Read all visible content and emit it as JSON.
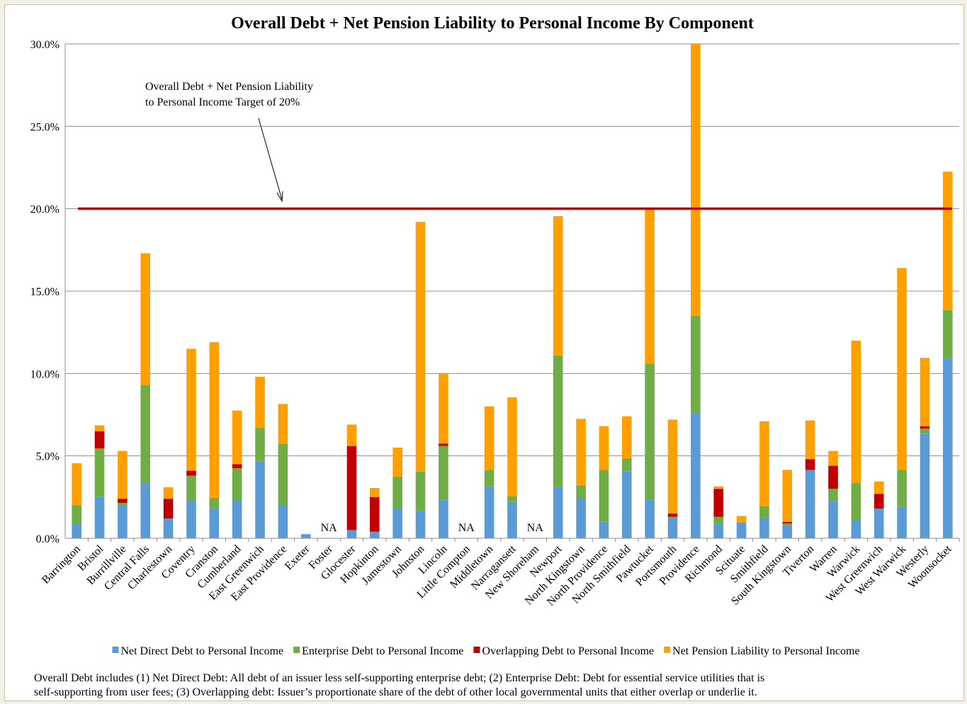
{
  "chart_data": {
    "type": "stacked_bar",
    "title": "Overall Debt + Net Pension Liability to Personal Income By Component",
    "categories": [
      "Barrington",
      "Bristol",
      "Burrillville",
      "Central Falls",
      "Charlestown",
      "Coventry",
      "Cranston",
      "Cumberland",
      "East Greenwich",
      "East Providence",
      "Exeter",
      "Foster",
      "Glocester",
      "Hopkinton",
      "Jamestown",
      "Johnston",
      "Lincoln",
      "Little Compton",
      "Middletown",
      "Narragansett",
      "New Shoreham",
      "Newport",
      "North Kingstown",
      "North Providence",
      "North Smithfield",
      "Pawtucket",
      "Portsmouth",
      "Providence",
      "Richmond",
      "Scituate",
      "Smithfield",
      "South Kingstown",
      "Tiverton",
      "Warren",
      "Warwick",
      "West Greenwich",
      "West Warwick",
      "Westerly",
      "Woonsocket"
    ],
    "series": [
      {
        "name": "Net Direct Debt to Personal Income",
        "color": "#5b9bd5",
        "values": [
          0.9,
          2.5,
          2.0,
          3.35,
          1.2,
          2.3,
          1.8,
          2.3,
          4.65,
          2.0,
          0.25,
          null,
          0.5,
          0.4,
          1.85,
          1.65,
          2.35,
          null,
          3.15,
          2.2,
          null,
          3.1,
          2.45,
          1.0,
          4.05,
          2.35,
          1.2,
          7.6,
          0.85,
          0.95,
          1.25,
          0.8,
          4.15,
          2.25,
          1.1,
          1.8,
          1.9,
          6.35,
          10.9
        ]
      },
      {
        "name": "Enterprise Debt to Personal Income",
        "color": "#70ad47",
        "values": [
          1.1,
          2.95,
          0.15,
          5.95,
          0,
          1.5,
          0.65,
          1.95,
          2.05,
          3.75,
          0,
          null,
          0,
          0,
          1.9,
          2.4,
          3.25,
          null,
          1.0,
          0.35,
          null,
          8.0,
          0.75,
          3.15,
          0.8,
          8.25,
          0.1,
          5.9,
          0.45,
          0,
          0.7,
          0.1,
          0,
          0.75,
          2.25,
          0,
          2.25,
          0.3,
          2.95
        ]
      },
      {
        "name": "Overlapping Debt to Personal Income",
        "color": "#c00000",
        "values": [
          0,
          1.05,
          0.25,
          0,
          1.2,
          0.3,
          0,
          0.25,
          0,
          0,
          0,
          null,
          5.1,
          2.1,
          0,
          0,
          0.15,
          null,
          0,
          0,
          null,
          0,
          0,
          0,
          0,
          0,
          0.2,
          0,
          1.7,
          0,
          0,
          0.1,
          0.65,
          1.4,
          0,
          0.9,
          0,
          0.15,
          0
        ]
      },
      {
        "name": "Net Pension Liability to Personal Income",
        "color": "#ffa000",
        "values": [
          2.55,
          0.35,
          2.9,
          8.0,
          0.7,
          7.4,
          9.45,
          3.25,
          3.1,
          2.4,
          0,
          null,
          1.3,
          0.55,
          1.75,
          15.15,
          4.25,
          null,
          3.85,
          6.0,
          null,
          8.45,
          4.05,
          2.65,
          2.55,
          9.4,
          5.7,
          16.5,
          0.15,
          0.4,
          5.15,
          3.15,
          2.35,
          0.9,
          8.65,
          0.75,
          12.25,
          4.15,
          8.4
        ]
      }
    ],
    "missing_label": "NA",
    "ylim": [
      0,
      30
    ],
    "yticks": [
      {
        "value": 0,
        "label": "0.0%"
      },
      {
        "value": 5,
        "label": "5.0%"
      },
      {
        "value": 10,
        "label": "10.0%"
      },
      {
        "value": 15,
        "label": "15.0%"
      },
      {
        "value": 20,
        "label": "20.0%"
      },
      {
        "value": 25,
        "label": "25.0%"
      },
      {
        "value": 30,
        "label": "30.0%"
      }
    ],
    "grid": true,
    "target": {
      "value": 20,
      "color": "#c00000",
      "label": [
        "Overall Debt + Net Pension Liability",
        "to Personal Income Target of 20%"
      ]
    },
    "note": [
      "Overall Debt includes (1) Net Direct Debt: All debt of an issuer less self-supporting enterprise debt; (2) Enterprise Debt: Debt for essential service utilities that is",
      "self-supporting from user fees; (3) Overlapping debt: Issuer’s proportionate share of the debt of other local governmental units that either overlap or underlie it."
    ]
  }
}
